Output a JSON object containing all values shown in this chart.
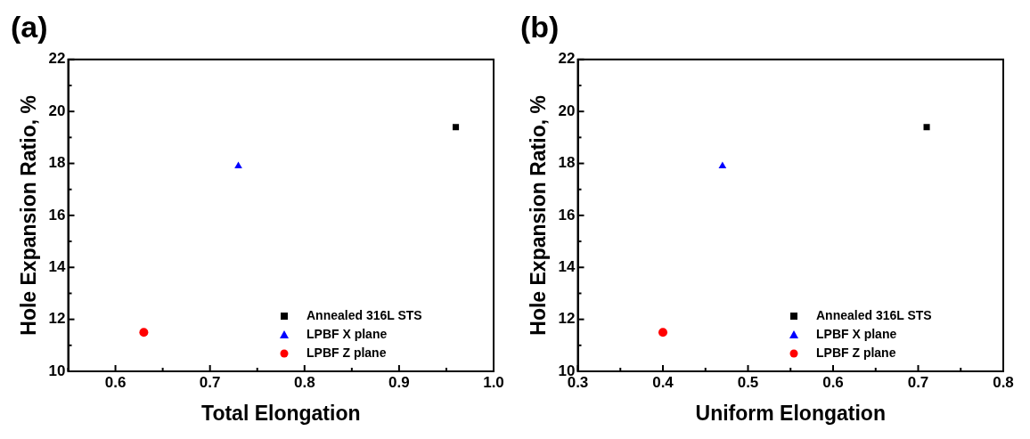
{
  "chart_data": [
    {
      "type": "scatter",
      "title": "(a)",
      "xlabel": "Total Elongation",
      "ylabel": "Hole Expansion Ratio, %",
      "xlim": [
        0.55,
        1.0
      ],
      "xticks": [
        {
          "value": 0.55,
          "label": null
        },
        0.6,
        {
          "value": 0.65,
          "label": null
        },
        0.7,
        {
          "value": 0.75,
          "label": null
        },
        0.8,
        {
          "value": 0.85,
          "label": null
        },
        0.9,
        {
          "value": 0.95,
          "label": null
        },
        {
          "value": 1.0,
          "label": "1.0"
        }
      ],
      "ylim": [
        10,
        22
      ],
      "yticks": [
        10,
        {
          "value": 11,
          "label": null
        },
        12,
        {
          "value": 13,
          "label": null
        },
        14,
        {
          "value": 15,
          "label": null
        },
        16,
        {
          "value": 17,
          "label": null
        },
        18,
        {
          "value": 19,
          "label": null
        },
        20,
        {
          "value": 21,
          "label": null
        },
        22
      ],
      "grid": false,
      "legend": "bottom right",
      "series": [
        {
          "name": "Annealed 316L STS",
          "color": "#000000",
          "marker": "square",
          "x": [
            0.96
          ],
          "values": [
            19.4
          ]
        },
        {
          "name": "LPBF X plane",
          "color": "#0000ff",
          "marker": "triangle",
          "x": [
            0.73
          ],
          "values": [
            17.9
          ]
        },
        {
          "name": "LPBF Z plane",
          "color": "#ff0000",
          "marker": "circle",
          "x": [
            0.63
          ],
          "values": [
            11.5
          ]
        }
      ]
    },
    {
      "type": "scatter",
      "title": "(b)",
      "xlabel": "Uniform Elongation",
      "ylabel": "Hole Expansion Ratio, %",
      "xlim": [
        0.3,
        0.8
      ],
      "xticks": [
        0.3,
        {
          "value": 0.35,
          "label": null
        },
        0.4,
        {
          "value": 0.45,
          "label": null
        },
        0.5,
        {
          "value": 0.55,
          "label": null
        },
        0.6,
        {
          "value": 0.65,
          "label": null
        },
        0.7,
        {
          "value": 0.75,
          "label": null
        },
        0.8
      ],
      "ylim": [
        10,
        22
      ],
      "yticks": [
        10,
        {
          "value": 11,
          "label": null
        },
        12,
        {
          "value": 13,
          "label": null
        },
        14,
        {
          "value": 15,
          "label": null
        },
        16,
        {
          "value": 17,
          "label": null
        },
        18,
        {
          "value": 19,
          "label": null
        },
        20,
        {
          "value": 21,
          "label": null
        },
        22
      ],
      "grid": false,
      "legend": "bottom right",
      "series": [
        {
          "name": "Annealed 316L STS",
          "color": "#000000",
          "marker": "square",
          "x": [
            0.71
          ],
          "values": [
            19.4
          ]
        },
        {
          "name": "LPBF X plane",
          "color": "#0000ff",
          "marker": "triangle",
          "x": [
            0.47
          ],
          "values": [
            17.9
          ]
        },
        {
          "name": "LPBF Z plane",
          "color": "#ff0000",
          "marker": "circle",
          "x": [
            0.4
          ],
          "values": [
            11.5
          ]
        }
      ]
    }
  ]
}
